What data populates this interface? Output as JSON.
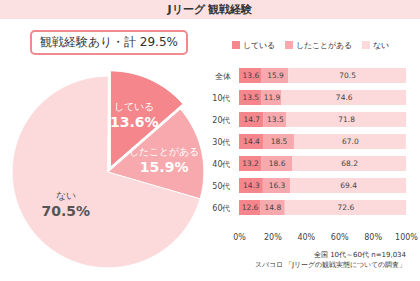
{
  "title": "Jリーグ 観戦経験",
  "chart_data": [
    {
      "type": "pie",
      "annotation": "観戦経験あり・計 29.5%",
      "categories": [
        "している",
        "したことがある",
        "ない"
      ],
      "values": [
        13.6,
        15.9,
        70.5
      ],
      "value_labels": [
        "13.6%",
        "15.9%",
        "70.5%"
      ],
      "colors": [
        "#f4868c",
        "#f7a9ad",
        "#fcd9da"
      ],
      "data_labels": true
    },
    {
      "type": "bar",
      "orientation": "horizontal",
      "stacked": true,
      "categories": [
        "全体",
        "10代",
        "20代",
        "30代",
        "40代",
        "50代",
        "60代"
      ],
      "series": [
        {
          "name": "している",
          "color": "#f4868c",
          "values": [
            13.6,
            13.5,
            14.7,
            14.4,
            13.2,
            14.3,
            12.6
          ],
          "value_labels": [
            "13.6",
            "13.5",
            "14.7",
            "14.4",
            "13.2",
            "14.3",
            "12.6"
          ]
        },
        {
          "name": "したことがある",
          "color": "#f7a9ad",
          "values": [
            15.9,
            11.9,
            13.5,
            18.5,
            18.6,
            16.3,
            14.8
          ],
          "value_labels": [
            "15.9",
            "11.9",
            "13.5",
            "18.5",
            "18.6",
            "16.3",
            "14.8"
          ]
        },
        {
          "name": "ない",
          "color": "#fcd9da",
          "values": [
            70.5,
            74.6,
            71.8,
            67.0,
            68.2,
            69.4,
            72.6
          ],
          "value_labels": [
            "70.5",
            "74.6",
            "71.8",
            "67.0",
            "68.2",
            "69.4",
            "72.6"
          ]
        }
      ],
      "xlim": [
        0,
        100
      ],
      "xticks": [
        {
          "value": 0,
          "label": "0%"
        },
        {
          "value": 20,
          "label": "20%"
        },
        {
          "value": 40,
          "label": "40%"
        },
        {
          "value": 60,
          "label": "60%"
        },
        {
          "value": 80,
          "label": "80%"
        },
        {
          "value": 100,
          "label": "100%"
        }
      ],
      "grid": false,
      "legend": "top",
      "data_labels": true,
      "notes": [
        "全国 10代～60代 n=19,034",
        "スパコロ 「Jリーグの観戦実態についての調査」"
      ]
    }
  ]
}
